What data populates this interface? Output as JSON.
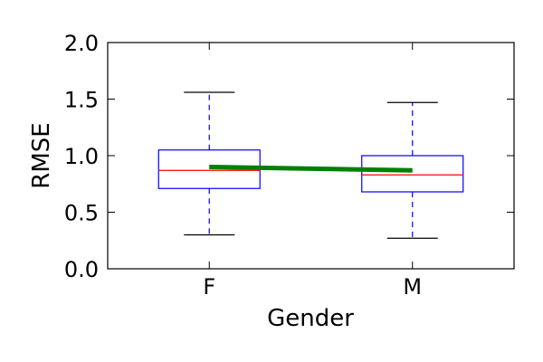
{
  "chart_data": {
    "type": "box",
    "xlabel": "Gender",
    "ylabel": "RMSE",
    "ylim": [
      0.0,
      2.0
    ],
    "yticks": [
      0.0,
      0.5,
      1.0,
      1.5,
      2.0
    ],
    "ytick_labels": [
      "0.0",
      "0.5",
      "1.0",
      "1.5",
      "2.0"
    ],
    "categories": [
      "F",
      "M"
    ],
    "boxes": [
      {
        "category": "F",
        "whisker_low": 0.3,
        "q1": 0.71,
        "median": 0.87,
        "q3": 1.05,
        "whisker_high": 1.56
      },
      {
        "category": "M",
        "whisker_low": 0.27,
        "q1": 0.68,
        "median": 0.83,
        "q3": 1.0,
        "whisker_high": 1.47
      }
    ],
    "mean_line": {
      "values": [
        0.9,
        0.87
      ]
    },
    "colors": {
      "box": "#0000ff",
      "median": "#ff0000",
      "whisker": "#0000ff",
      "cap": "#000000",
      "mean_line": "#008000",
      "axes": "#000000"
    },
    "grid": false
  }
}
